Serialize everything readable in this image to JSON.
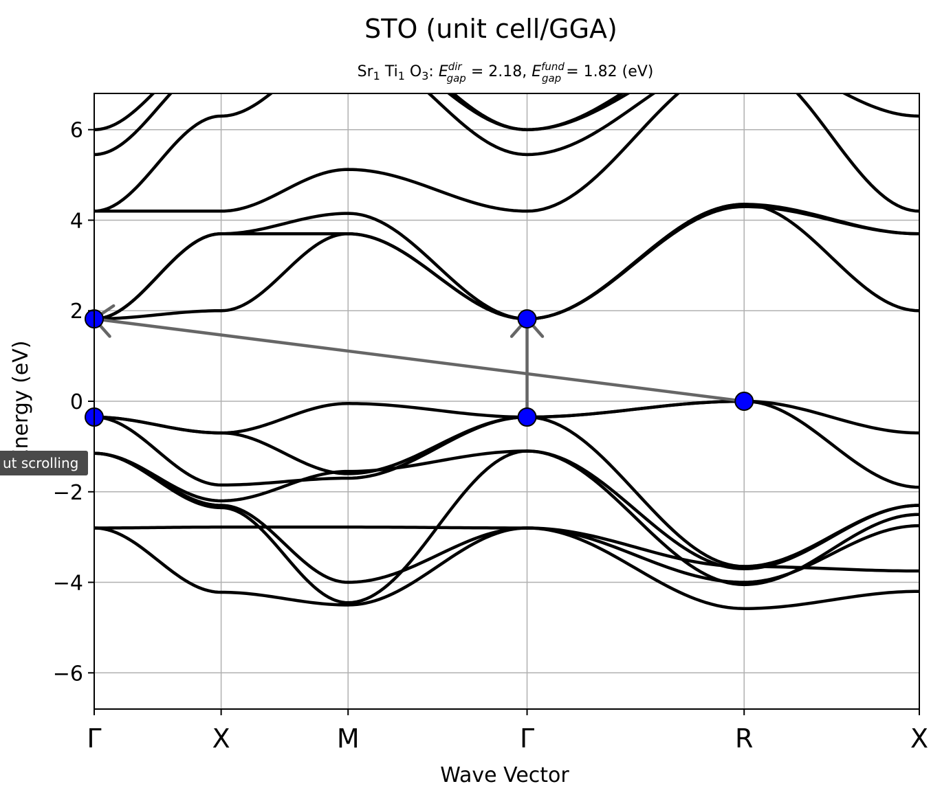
{
  "chart_data": {
    "type": "line",
    "title": "STO (unit cell/GGA)",
    "subtitle": {
      "formula": [
        {
          "el": "Sr",
          "n": "1"
        },
        {
          "el": "Ti",
          "n": "1"
        },
        {
          "el": "O",
          "n": "3"
        }
      ],
      "direct_gap": {
        "symbol": "E",
        "sup": "dir",
        "sub": "gap",
        "value": "= 2.18,"
      },
      "fundamental_gap": {
        "symbol": "E",
        "sup": "fund",
        "sub": "gap",
        "value": "= 1.82 (eV)"
      }
    },
    "xlabel": "Wave Vector",
    "ylabel": "Energy (eV)",
    "ylim": [
      -6.8,
      6.8
    ],
    "xlim": [
      0,
      6.5
    ],
    "grid": true,
    "kpoints": [
      {
        "label": "Γ",
        "x": 0
      },
      {
        "label": "X",
        "x": 1
      },
      {
        "label": "M",
        "x": 2
      },
      {
        "label": "Γ",
        "x": 3.41
      },
      {
        "label": "R",
        "x": 5.12
      },
      {
        "label": "X",
        "x": 6.5
      }
    ],
    "yticks": [
      {
        "label": "−6",
        "v": -6
      },
      {
        "label": "−4",
        "v": -4
      },
      {
        "label": "−2",
        "v": -2
      },
      {
        "label": "0",
        "v": 0
      },
      {
        "label": "2",
        "v": 2
      },
      {
        "label": "4",
        "v": 4
      },
      {
        "label": "6",
        "v": 6
      }
    ],
    "band_color": "#000000",
    "marker_color": "#0000ff",
    "arrow_color": "#666666",
    "bands": [
      {
        "name": "",
        "x": [
          0,
          1,
          2,
          3.41,
          5.12,
          6.5
        ],
        "y": [
          -2.8,
          -2.78,
          -2.78,
          -2.8,
          -3.65,
          -3.75
        ]
      },
      {
        "name": "",
        "x": [
          0,
          1,
          2,
          3.41,
          5.12,
          6.5
        ],
        "y": [
          -2.8,
          -4.22,
          -4.5,
          -2.8,
          -4.58,
          -4.2
        ]
      },
      {
        "name": "",
        "x": [
          0,
          1,
          2,
          3.41,
          5.12,
          6.5
        ],
        "y": [
          -1.15,
          -2.3,
          -4.0,
          -2.8,
          -4.0,
          -2.75
        ]
      },
      {
        "name": "",
        "x": [
          0,
          1,
          2,
          3.41,
          5.12,
          6.5
        ],
        "y": [
          -1.15,
          -2.35,
          -4.45,
          -1.1,
          -4.05,
          -2.5
        ]
      },
      {
        "name": "",
        "x": [
          0,
          1,
          2,
          3.41,
          5.12,
          6.5
        ],
        "y": [
          -1.15,
          -2.2,
          -1.55,
          -1.1,
          -3.7,
          -2.3
        ]
      },
      {
        "name": "",
        "x": [
          0,
          1,
          2,
          3.41,
          5.12,
          6.5
        ],
        "y": [
          -0.35,
          -1.85,
          -1.7,
          -0.35,
          -3.65,
          -2.3
        ]
      },
      {
        "name": "",
        "x": [
          0,
          1,
          2,
          3.41,
          5.12,
          6.5
        ],
        "y": [
          -0.35,
          -0.7,
          -1.6,
          -0.35,
          0,
          -1.9
        ]
      },
      {
        "name": "",
        "x": [
          0,
          1,
          2,
          3.41,
          5.12,
          6.5
        ],
        "y": [
          -0.35,
          -0.7,
          -0.05,
          -0.35,
          0,
          -0.7
        ]
      },
      {
        "name": "",
        "x": [
          0,
          1,
          2,
          3.41,
          5.12,
          6.5
        ],
        "y": [
          1.82,
          2.0,
          3.7,
          1.82,
          4.35,
          2.0
        ]
      },
      {
        "name": "",
        "x": [
          0,
          1,
          2,
          3.41,
          5.12,
          6.5
        ],
        "y": [
          1.82,
          3.7,
          3.7,
          1.82,
          4.35,
          3.7
        ]
      },
      {
        "name": "",
        "x": [
          0,
          1,
          2,
          3.41,
          5.12,
          6.5
        ],
        "y": [
          1.82,
          3.7,
          4.15,
          1.82,
          4.3,
          3.7
        ]
      },
      {
        "name": "",
        "x": [
          0,
          1,
          2,
          3.41,
          5.12,
          6.5
        ],
        "y": [
          4.2,
          4.2,
          5.12,
          4.2,
          7.5,
          4.2
        ]
      },
      {
        "name": "",
        "x": [
          0,
          1,
          2,
          3.41,
          5.12,
          6.5
        ],
        "y": [
          4.2,
          6.3,
          7.8,
          5.45,
          7.6,
          6.3
        ]
      },
      {
        "name": "",
        "x": [
          0,
          1,
          2,
          3.41,
          5.12,
          6.5
        ],
        "y": [
          5.45,
          7.5,
          8.0,
          6.0,
          7.8,
          7.5
        ]
      },
      {
        "name": "",
        "x": [
          0,
          1,
          2,
          3.41,
          5.12,
          6.5
        ],
        "y": [
          6.0,
          7.8,
          8.2,
          6.0,
          8.0,
          7.8
        ]
      }
    ],
    "markers": [
      {
        "x": 0,
        "y": 1.82
      },
      {
        "x": 0,
        "y": -0.35
      },
      {
        "x": 3.41,
        "y": 1.82
      },
      {
        "x": 3.41,
        "y": -0.35
      },
      {
        "x": 5.12,
        "y": 0
      }
    ],
    "arrows": [
      {
        "from": [
          3.41,
          -0.35
        ],
        "to": [
          3.41,
          1.82
        ]
      },
      {
        "from": [
          5.12,
          0
        ],
        "to": [
          0,
          1.82
        ]
      }
    ]
  },
  "tooltip": {
    "text": "ut scrolling"
  }
}
